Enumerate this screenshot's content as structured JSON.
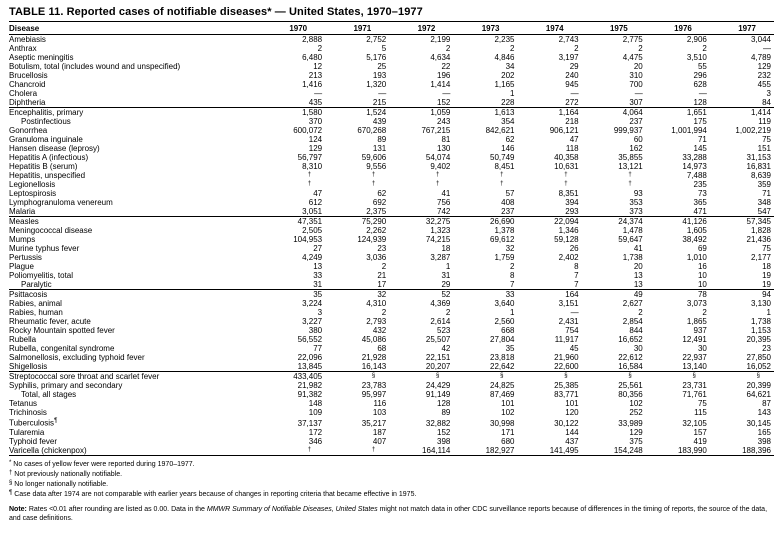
{
  "table": {
    "title": "TABLE 11. Reported cases of notifiable diseases* — United States, 1970–1977",
    "header": {
      "disease_col": "Disease",
      "years": [
        "1970",
        "1971",
        "1972",
        "1973",
        "1974",
        "1975",
        "1976",
        "1977"
      ]
    },
    "groups": [
      {
        "rows": [
          {
            "name": "Amebiasis",
            "indent": false,
            "values": [
              "2,888",
              "2,752",
              "2,199",
              "2,235",
              "2,743",
              "2,775",
              "2,906",
              "3,044"
            ]
          },
          {
            "name": "Anthrax",
            "indent": false,
            "values": [
              "2",
              "5",
              "2",
              "2",
              "2",
              "2",
              "2",
              "—"
            ]
          },
          {
            "name": "Aseptic meningitis",
            "indent": false,
            "values": [
              "6,480",
              "5,176",
              "4,634",
              "4,846",
              "3,197",
              "4,475",
              "3,510",
              "4,789"
            ]
          },
          {
            "name": "Botulism, total (includes wound and unspecified)",
            "indent": false,
            "values": [
              "12",
              "25",
              "22",
              "34",
              "29",
              "20",
              "55",
              "129"
            ]
          },
          {
            "name": "Brucellosis",
            "indent": false,
            "values": [
              "213",
              "193",
              "196",
              "202",
              "240",
              "310",
              "296",
              "232"
            ]
          },
          {
            "name": "Chancroid",
            "indent": false,
            "values": [
              "1,416",
              "1,320",
              "1,414",
              "1,165",
              "945",
              "700",
              "628",
              "455"
            ]
          },
          {
            "name": "Cholera",
            "indent": false,
            "values": [
              "—",
              "—",
              "—",
              "1",
              "—",
              "—",
              "—",
              "3"
            ]
          },
          {
            "name": "Diphtheria",
            "indent": false,
            "values": [
              "435",
              "215",
              "152",
              "228",
              "272",
              "307",
              "128",
              "84"
            ]
          }
        ]
      },
      {
        "rows": [
          {
            "name": "Encephalitis, primary",
            "indent": false,
            "values": [
              "1,580",
              "1,524",
              "1,059",
              "1,613",
              "1,164",
              "4,064",
              "1,651",
              "1,414"
            ]
          },
          {
            "name": "Postinfectious",
            "indent": true,
            "values": [
              "370",
              "439",
              "243",
              "354",
              "218",
              "237",
              "175",
              "119"
            ]
          },
          {
            "name": "Gonorrhea",
            "indent": false,
            "values": [
              "600,072",
              "670,268",
              "767,215",
              "842,621",
              "906,121",
              "999,937",
              "1,001,994",
              "1,002,219"
            ]
          },
          {
            "name": "Granuloma inguinale",
            "indent": false,
            "values": [
              "124",
              "89",
              "81",
              "62",
              "47",
              "60",
              "71",
              "75"
            ]
          },
          {
            "name": "Hansen disease (leprosy)",
            "indent": false,
            "values": [
              "129",
              "131",
              "130",
              "146",
              "118",
              "162",
              "145",
              "151"
            ]
          },
          {
            "name": "Hepatitis A (infectious)",
            "indent": false,
            "values": [
              "56,797",
              "59,606",
              "54,074",
              "50,749",
              "40,358",
              "35,855",
              "33,288",
              "31,153"
            ]
          },
          {
            "name": "Hepatitis B (serum)",
            "indent": false,
            "values": [
              "8,310",
              "9,556",
              "9,402",
              "8,451",
              "10,631",
              "13,121",
              "14,973",
              "16,831"
            ]
          },
          {
            "name": "Hepatitis, unspecified",
            "indent": false,
            "values": [
              "†",
              "†",
              "†",
              "†",
              "†",
              "†",
              "7,488",
              "8,639"
            ]
          },
          {
            "name": "Legionellosis",
            "indent": false,
            "values": [
              "†",
              "†",
              "†",
              "†",
              "†",
              "†",
              "235",
              "359"
            ]
          },
          {
            "name": "Leptospirosis",
            "indent": false,
            "values": [
              "47",
              "62",
              "41",
              "57",
              "8,351",
              "93",
              "73",
              "71"
            ]
          },
          {
            "name": "Lymphogranuloma venereum",
            "indent": false,
            "values": [
              "612",
              "692",
              "756",
              "408",
              "394",
              "353",
              "365",
              "348"
            ]
          },
          {
            "name": "Malaria",
            "indent": false,
            "values": [
              "3,051",
              "2,375",
              "742",
              "237",
              "293",
              "373",
              "471",
              "547"
            ]
          }
        ]
      },
      {
        "rows": [
          {
            "name": "Measles",
            "indent": false,
            "values": [
              "47,351",
              "75,290",
              "32,275",
              "26,690",
              "22,094",
              "24,374",
              "41,126",
              "57,345"
            ]
          },
          {
            "name": "Meningococcal disease",
            "indent": false,
            "values": [
              "2,505",
              "2,262",
              "1,323",
              "1,378",
              "1,346",
              "1,478",
              "1,605",
              "1,828"
            ]
          },
          {
            "name": "Mumps",
            "indent": false,
            "values": [
              "104,953",
              "124,939",
              "74,215",
              "69,612",
              "59,128",
              "59,647",
              "38,492",
              "21,436"
            ]
          },
          {
            "name": "Murine typhus fever",
            "indent": false,
            "values": [
              "27",
              "23",
              "18",
              "32",
              "26",
              "41",
              "69",
              "75"
            ]
          },
          {
            "name": "Pertussis",
            "indent": false,
            "values": [
              "4,249",
              "3,036",
              "3,287",
              "1,759",
              "2,402",
              "1,738",
              "1,010",
              "2,177"
            ]
          },
          {
            "name": "Plague",
            "indent": false,
            "values": [
              "13",
              "2",
              "1",
              "2",
              "8",
              "20",
              "16",
              "18"
            ]
          },
          {
            "name": "Poliomyelitis, total",
            "indent": false,
            "values": [
              "33",
              "21",
              "31",
              "8",
              "7",
              "13",
              "10",
              "19"
            ]
          },
          {
            "name": "Paralytic",
            "indent": true,
            "values": [
              "31",
              "17",
              "29",
              "7",
              "7",
              "13",
              "10",
              "19"
            ]
          }
        ]
      },
      {
        "rows": [
          {
            "name": "Psittacosis",
            "indent": false,
            "values": [
              "35",
              "32",
              "52",
              "33",
              "164",
              "49",
              "78",
              "94"
            ]
          },
          {
            "name": "Rabies, animal",
            "indent": false,
            "values": [
              "3,224",
              "4,310",
              "4,369",
              "3,640",
              "3,151",
              "2,627",
              "3,073",
              "3,130"
            ]
          },
          {
            "name": "Rabies, human",
            "indent": false,
            "values": [
              "3",
              "2",
              "2",
              "1",
              "—",
              "2",
              "2",
              "1"
            ]
          },
          {
            "name": "Rheumatic fever, acute",
            "indent": false,
            "values": [
              "3,227",
              "2,793",
              "2,614",
              "2,560",
              "2,431",
              "2,854",
              "1,865",
              "1,738"
            ]
          },
          {
            "name": "Rocky Mountain spotted fever",
            "indent": false,
            "values": [
              "380",
              "432",
              "523",
              "668",
              "754",
              "844",
              "937",
              "1,153"
            ]
          },
          {
            "name": "Rubella",
            "indent": false,
            "values": [
              "56,552",
              "45,086",
              "25,507",
              "27,804",
              "11,917",
              "16,652",
              "12,491",
              "20,395"
            ]
          },
          {
            "name": "Rubella, congenital syndrome",
            "indent": false,
            "values": [
              "77",
              "68",
              "42",
              "35",
              "45",
              "30",
              "30",
              "23"
            ]
          },
          {
            "name": "Salmonellosis, excluding typhoid fever",
            "indent": false,
            "values": [
              "22,096",
              "21,928",
              "22,151",
              "23,818",
              "21,960",
              "22,612",
              "22,937",
              "27,850"
            ]
          },
          {
            "name": "Shigellosis",
            "indent": false,
            "values": [
              "13,845",
              "16,143",
              "20,207",
              "22,642",
              "22,600",
              "16,584",
              "13,140",
              "16,052"
            ]
          }
        ]
      },
      {
        "rows": [
          {
            "name": "Streptococcal sore throat and scarlet fever",
            "indent": false,
            "values": [
              "433,405",
              "§",
              "§",
              "§",
              "§",
              "§",
              "§",
              "§"
            ]
          },
          {
            "name": "Syphilis, primary and secondary",
            "indent": false,
            "values": [
              "21,982",
              "23,783",
              "24,429",
              "24,825",
              "25,385",
              "25,561",
              "23,731",
              "20,399"
            ]
          },
          {
            "name": "Total, all stages",
            "indent": true,
            "values": [
              "91,382",
              "95,997",
              "91,149",
              "87,469",
              "83,771",
              "80,356",
              "71,761",
              "64,621"
            ]
          },
          {
            "name": "Tetanus",
            "indent": false,
            "values": [
              "148",
              "116",
              "128",
              "101",
              "101",
              "102",
              "75",
              "87"
            ]
          },
          {
            "name": "Trichinosis",
            "indent": false,
            "values": [
              "109",
              "103",
              "89",
              "102",
              "120",
              "252",
              "115",
              "143"
            ]
          },
          {
            "name": "Tuberculosis",
            "marker": "¶",
            "indent": false,
            "values": [
              "37,137",
              "35,217",
              "32,882",
              "30,998",
              "30,122",
              "33,989",
              "32,105",
              "30,145"
            ]
          },
          {
            "name": "Tularemia",
            "indent": false,
            "values": [
              "172",
              "187",
              "152",
              "171",
              "144",
              "129",
              "157",
              "165"
            ]
          },
          {
            "name": "Typhoid fever",
            "indent": false,
            "values": [
              "346",
              "407",
              "398",
              "680",
              "437",
              "375",
              "419",
              "398"
            ]
          },
          {
            "name": "Varicella (chickenpox)",
            "indent": false,
            "values": [
              "†",
              "†",
              "164,114",
              "182,927",
              "141,495",
              "154,248",
              "183,990",
              "188,396"
            ]
          }
        ]
      }
    ]
  },
  "footnotes": [
    {
      "symbol": "*",
      "text": "No cases of yellow fever were reported during 1970–1977."
    },
    {
      "symbol": "†",
      "text": "Not previously nationally notifiable."
    },
    {
      "symbol": "§",
      "text": "No longer nationally notifiable."
    },
    {
      "symbol": "¶",
      "text": "Case data after 1974 are not comparable with earlier years because of changes in reporting criteria that became effective in 1975."
    }
  ],
  "note": {
    "label": "Note:",
    "before_italic": " Rates <0.01 after rounding are listed as 0.00. Data in the ",
    "italic": "MMWR Summary of Notifiable Diseases, United States",
    "after_italic": " might not match data in other CDC surveillance reports because of differences in the timing of reports, the source of the data, and case definitions."
  }
}
